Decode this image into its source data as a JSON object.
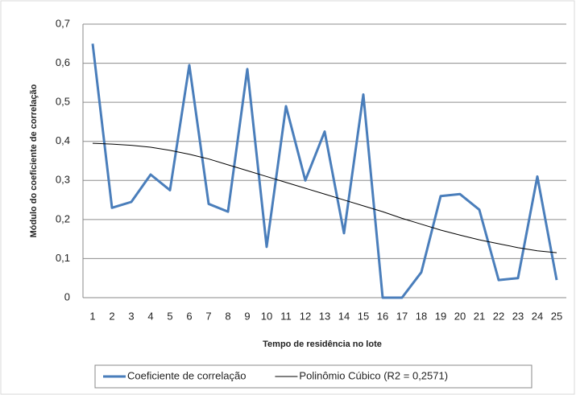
{
  "chart_data": {
    "type": "line",
    "x_label": "Tempo de residência no lote",
    "y_label": "Módulo do coeficiente de correlação",
    "categories": [
      "1",
      "2",
      "3",
      "4",
      "5",
      "6",
      "7",
      "8",
      "9",
      "10",
      "11",
      "12",
      "13",
      "14",
      "15",
      "16",
      "17",
      "18",
      "19",
      "20",
      "21",
      "22",
      "23",
      "24",
      "25"
    ],
    "series": [
      {
        "name": "Coeficiente de correlação",
        "color": "#4a7ebb",
        "width": 3,
        "values": [
          0.65,
          0.23,
          0.245,
          0.315,
          0.275,
          0.595,
          0.24,
          0.22,
          0.585,
          0.13,
          0.49,
          0.3,
          0.425,
          0.165,
          0.52,
          0.0,
          0.0,
          0.065,
          0.26,
          0.265,
          0.225,
          0.045,
          0.05,
          0.31,
          0.045
        ]
      },
      {
        "name": "Polinômio Cúbico (R2 = 0,2571)",
        "color": "#000000",
        "width": 1,
        "values": [
          0.395,
          0.393,
          0.39,
          0.385,
          0.377,
          0.367,
          0.355,
          0.34,
          0.325,
          0.31,
          0.295,
          0.28,
          0.265,
          0.25,
          0.235,
          0.22,
          0.203,
          0.188,
          0.173,
          0.16,
          0.148,
          0.138,
          0.128,
          0.12,
          0.115
        ]
      }
    ],
    "ylim": [
      0,
      0.7
    ],
    "yticks": [
      0,
      {
        "value": 0.1,
        "label": "0,1"
      },
      {
        "value": 0.2,
        "label": "0,2"
      },
      {
        "value": 0.3,
        "label": "0,3"
      },
      {
        "value": 0.4,
        "label": "0,4"
      },
      {
        "value": 0.5,
        "label": "0,5"
      },
      {
        "value": 0.6,
        "label": "0,6"
      },
      {
        "value": 0.7,
        "label": "0,7"
      }
    ],
    "grid": true,
    "legend": "bottom"
  }
}
